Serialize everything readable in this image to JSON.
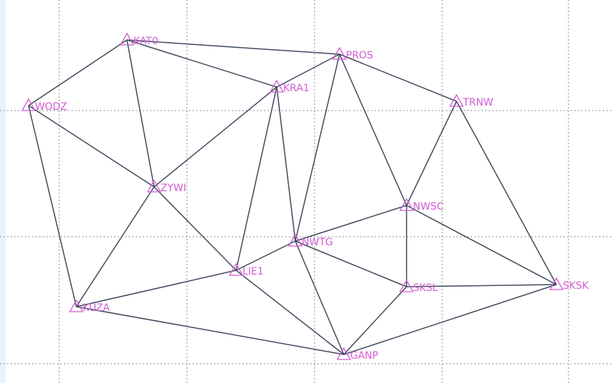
{
  "diagram": {
    "colors": {
      "background": "#ffffff",
      "grid": "#8a8a8a",
      "edge": "#3e4a5e",
      "station": "#d25bd2",
      "left_strip": "#eaf1f9"
    },
    "stations": [
      {
        "id": "KAT0",
        "label": "KAT0"
      },
      {
        "id": "PROS",
        "label": "PROS"
      },
      {
        "id": "KRA1",
        "label": "KRA1"
      },
      {
        "id": "TRNW",
        "label": "TRNW"
      },
      {
        "id": "WODZ",
        "label": "WODZ"
      },
      {
        "id": "ZYWI",
        "label": "ZYWI"
      },
      {
        "id": "NWSC",
        "label": "NWSC"
      },
      {
        "id": "NWTG",
        "label": "NWTG"
      },
      {
        "id": "LIE1",
        "label": "LIE1"
      },
      {
        "id": "SKSL",
        "label": "SKSL"
      },
      {
        "id": "SKSK",
        "label": "SKSK"
      },
      {
        "id": "KUZA",
        "label": "KUZA"
      },
      {
        "id": "GANP",
        "label": "GANP"
      }
    ],
    "edges": [
      [
        "KAT0",
        "PROS"
      ],
      [
        "KAT0",
        "KRA1"
      ],
      [
        "KAT0",
        "WODZ"
      ],
      [
        "KAT0",
        "ZYWI"
      ],
      [
        "WODZ",
        "ZYWI"
      ],
      [
        "WODZ",
        "KUZA"
      ],
      [
        "PROS",
        "KRA1"
      ],
      [
        "PROS",
        "TRNW"
      ],
      [
        "PROS",
        "NWSC"
      ],
      [
        "PROS",
        "NWTG"
      ],
      [
        "KRA1",
        "ZYWI"
      ],
      [
        "KRA1",
        "LIE1"
      ],
      [
        "KRA1",
        "NWTG"
      ],
      [
        "TRNW",
        "NWSC"
      ],
      [
        "TRNW",
        "SKSK"
      ],
      [
        "ZYWI",
        "KUZA"
      ],
      [
        "ZYWI",
        "LIE1"
      ],
      [
        "NWSC",
        "NWTG"
      ],
      [
        "NWSC",
        "SKSL"
      ],
      [
        "NWSC",
        "SKSK"
      ],
      [
        "NWTG",
        "LIE1"
      ],
      [
        "NWTG",
        "SKSL"
      ],
      [
        "NWTG",
        "GANP"
      ],
      [
        "LIE1",
        "KUZA"
      ],
      [
        "LIE1",
        "GANP"
      ],
      [
        "SKSL",
        "SKSK"
      ],
      [
        "SKSL",
        "GANP"
      ],
      [
        "SKSK",
        "GANP"
      ],
      [
        "KUZA",
        "GANP"
      ]
    ]
  }
}
